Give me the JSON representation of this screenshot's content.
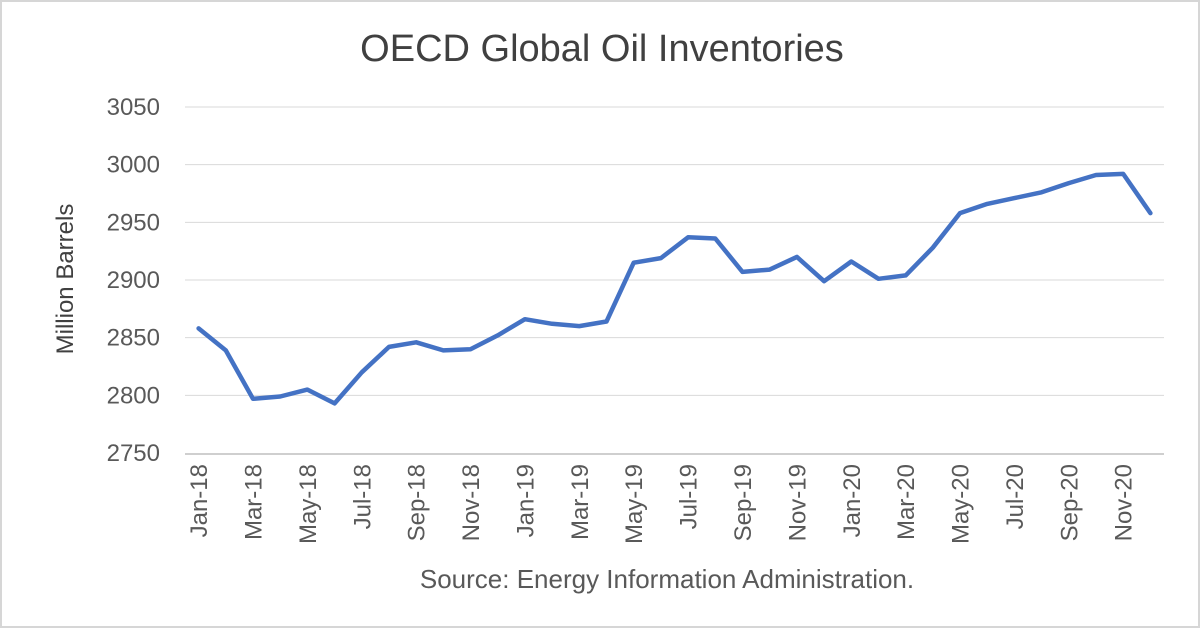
{
  "chart": {
    "title": "OECD Global Oil Inventories",
    "y_axis_title": "Million Barrels",
    "source_note": "Source: Energy Information Administration."
  },
  "chart_data": {
    "type": "line",
    "title": "OECD Global Oil Inventories",
    "ylabel": "Million Barrels",
    "xlabel": "",
    "source": "Source: Energy Information Administration.",
    "x": [
      "Jan-18",
      "Feb-18",
      "Mar-18",
      "Apr-18",
      "May-18",
      "Jun-18",
      "Jul-18",
      "Aug-18",
      "Sep-18",
      "Oct-18",
      "Nov-18",
      "Dec-18",
      "Jan-19",
      "Feb-19",
      "Mar-19",
      "Apr-19",
      "May-19",
      "Jun-19",
      "Jul-19",
      "Aug-19",
      "Sep-19",
      "Oct-19",
      "Nov-19",
      "Dec-19",
      "Jan-20",
      "Feb-20",
      "Mar-20",
      "Apr-20",
      "May-20",
      "Jun-20",
      "Jul-20",
      "Aug-20",
      "Sep-20",
      "Oct-20",
      "Nov-20",
      "Dec-20"
    ],
    "values": [
      2858,
      2839,
      2797,
      2799,
      2805,
      2793,
      2820,
      2842,
      2846,
      2839,
      2840,
      2852,
      2866,
      2862,
      2860,
      2864,
      2915,
      2919,
      2937,
      2936,
      2907,
      2909,
      2920,
      2899,
      2916,
      2901,
      2904,
      2928,
      2958,
      2966,
      2971,
      2976,
      2984,
      2991,
      2992,
      2958
    ],
    "series": [
      {
        "name": "OECD global oil inventories (million barrels)",
        "values": [
          2858,
          2839,
          2797,
          2799,
          2805,
          2793,
          2820,
          2842,
          2846,
          2839,
          2840,
          2852,
          2866,
          2862,
          2860,
          2864,
          2915,
          2919,
          2937,
          2936,
          2907,
          2909,
          2920,
          2899,
          2916,
          2901,
          2904,
          2928,
          2958,
          2966,
          2971,
          2976,
          2984,
          2991,
          2992,
          2958
        ]
      }
    ],
    "yticks": [
      2750,
      2800,
      2850,
      2900,
      2950,
      3000,
      3050
    ],
    "ylim": [
      2750,
      3050
    ],
    "xtick_every": 2,
    "grid": true,
    "legend": false,
    "line_color": "#4472C4",
    "gridline_color": "#D9D9D9",
    "axis_line_color": "#BFBFBF",
    "tick_label_color": "#595959",
    "title_color": "#404040"
  }
}
